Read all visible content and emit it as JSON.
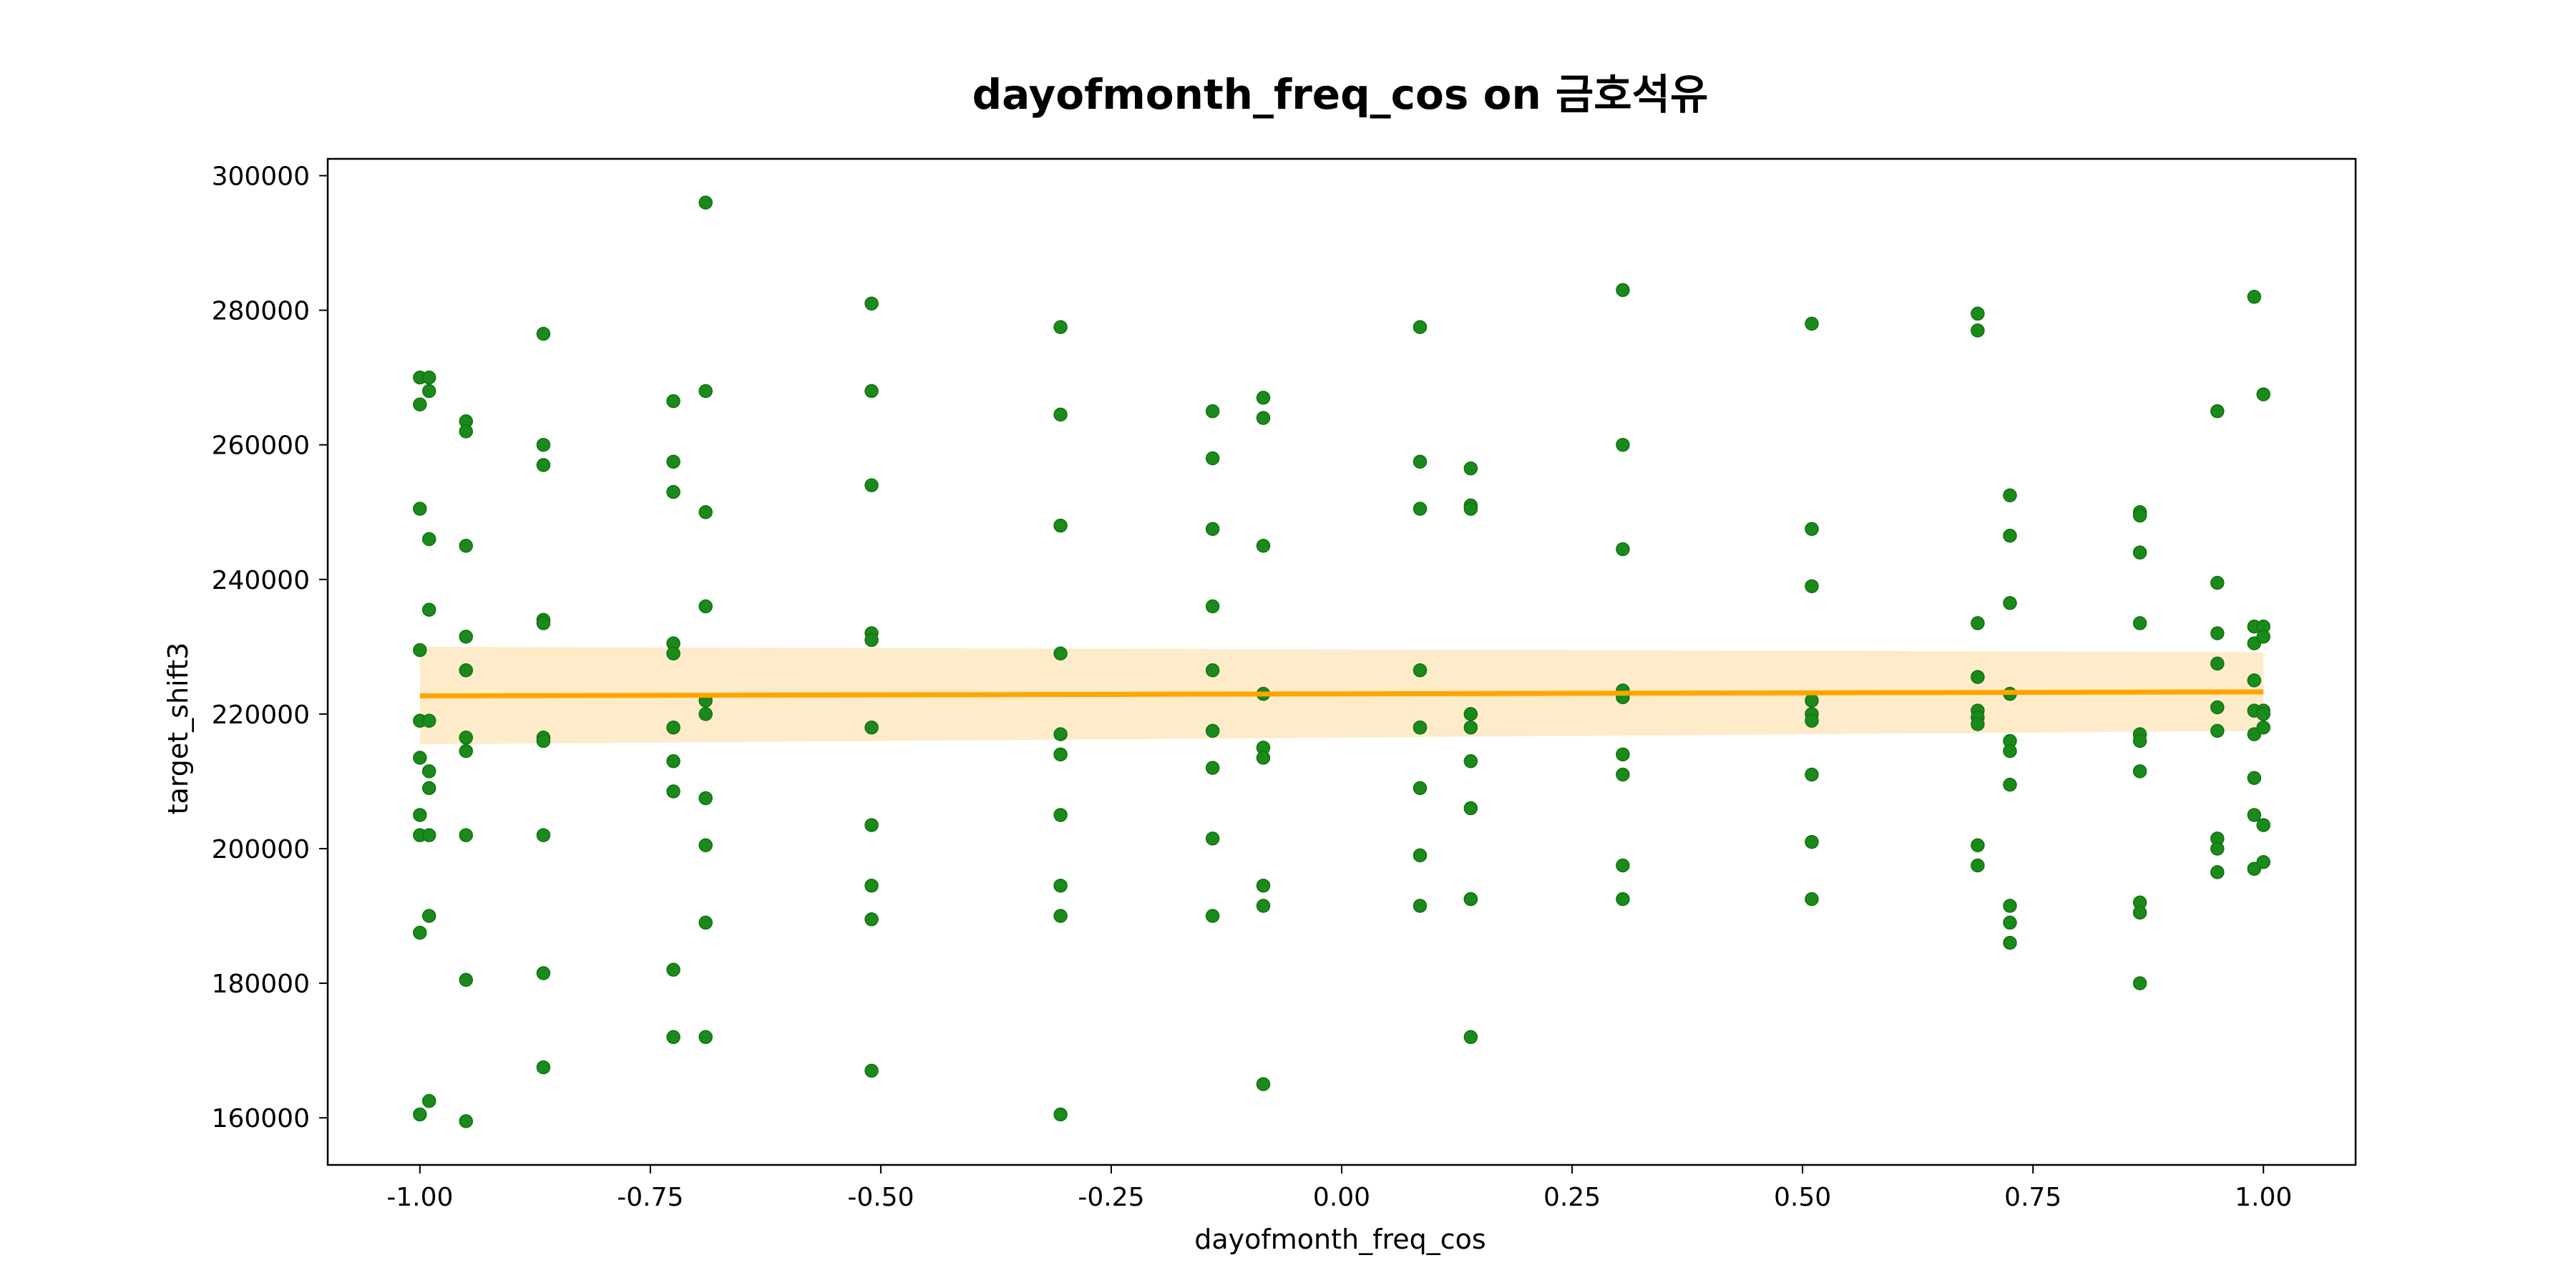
{
  "chart_data": {
    "type": "scatter",
    "title": "dayofmonth_freq_cos on 금호석유",
    "xlabel": "dayofmonth_freq_cos",
    "ylabel": "target_shift3",
    "xlim": [
      -1.1,
      1.1
    ],
    "ylim": [
      153000,
      302500
    ],
    "xticks": [
      -1.0,
      -0.75,
      -0.5,
      -0.25,
      0.0,
      0.25,
      0.5,
      0.75,
      1.0
    ],
    "xtick_labels": [
      "-1.00",
      "-0.75",
      "-0.50",
      "-0.25",
      "0.00",
      "0.25",
      "0.50",
      "0.75",
      "1.00"
    ],
    "yticks": [
      160000,
      180000,
      200000,
      220000,
      240000,
      260000,
      280000,
      300000
    ],
    "ytick_labels": [
      "160000",
      "180000",
      "200000",
      "220000",
      "240000",
      "260000",
      "280000",
      "300000"
    ],
    "grid": false,
    "colors": {
      "points": "#1a8a1a",
      "points_edge": "#117311",
      "regression_line": "#ffa500",
      "confidence_band": "#fde7c0"
    },
    "points": [
      [
        -1.0,
        270000
      ],
      [
        -0.99,
        270000
      ],
      [
        -0.99,
        268000
      ],
      [
        -1.0,
        266000
      ],
      [
        -1.0,
        250500
      ],
      [
        -0.99,
        246000
      ],
      [
        -0.99,
        235500
      ],
      [
        -1.0,
        229500
      ],
      [
        -1.0,
        219000
      ],
      [
        -0.99,
        219000
      ],
      [
        -1.0,
        213500
      ],
      [
        -0.99,
        211500
      ],
      [
        -0.99,
        209000
      ],
      [
        -1.0,
        205000
      ],
      [
        -1.0,
        202000
      ],
      [
        -0.99,
        202000
      ],
      [
        -0.99,
        190000
      ],
      [
        -1.0,
        187500
      ],
      [
        -0.99,
        162500
      ],
      [
        -1.0,
        160500
      ],
      [
        -0.95,
        263500
      ],
      [
        -0.95,
        262000
      ],
      [
        -0.95,
        245000
      ],
      [
        -0.95,
        231500
      ],
      [
        -0.95,
        226500
      ],
      [
        -0.95,
        216500
      ],
      [
        -0.95,
        214500
      ],
      [
        -0.95,
        202000
      ],
      [
        -0.95,
        180500
      ],
      [
        -0.95,
        159500
      ],
      [
        -0.866,
        276500
      ],
      [
        -0.866,
        260000
      ],
      [
        -0.866,
        257000
      ],
      [
        -0.866,
        234000
      ],
      [
        -0.866,
        233500
      ],
      [
        -0.866,
        216500
      ],
      [
        -0.866,
        216000
      ],
      [
        -0.866,
        202000
      ],
      [
        -0.866,
        181500
      ],
      [
        -0.866,
        167500
      ],
      [
        -0.725,
        266500
      ],
      [
        -0.725,
        257500
      ],
      [
        -0.725,
        253000
      ],
      [
        -0.725,
        230500
      ],
      [
        -0.725,
        229000
      ],
      [
        -0.725,
        218000
      ],
      [
        -0.725,
        213000
      ],
      [
        -0.725,
        208500
      ],
      [
        -0.725,
        182000
      ],
      [
        -0.725,
        172000
      ],
      [
        -0.69,
        296000
      ],
      [
        -0.69,
        268000
      ],
      [
        -0.69,
        250000
      ],
      [
        -0.69,
        236000
      ],
      [
        -0.69,
        222000
      ],
      [
        -0.69,
        220000
      ],
      [
        -0.69,
        207500
      ],
      [
        -0.69,
        200500
      ],
      [
        -0.69,
        189000
      ],
      [
        -0.69,
        172000
      ],
      [
        -0.51,
        281000
      ],
      [
        -0.51,
        268000
      ],
      [
        -0.51,
        254000
      ],
      [
        -0.51,
        232000
      ],
      [
        -0.51,
        231000
      ],
      [
        -0.51,
        218000
      ],
      [
        -0.51,
        203500
      ],
      [
        -0.51,
        194500
      ],
      [
        -0.51,
        189500
      ],
      [
        -0.51,
        167000
      ],
      [
        -0.305,
        277500
      ],
      [
        -0.305,
        264500
      ],
      [
        -0.305,
        248000
      ],
      [
        -0.305,
        229000
      ],
      [
        -0.305,
        217000
      ],
      [
        -0.305,
        214000
      ],
      [
        -0.305,
        205000
      ],
      [
        -0.305,
        194500
      ],
      [
        -0.305,
        190000
      ],
      [
        -0.305,
        160500
      ],
      [
        -0.14,
        265000
      ],
      [
        -0.14,
        258000
      ],
      [
        -0.14,
        247500
      ],
      [
        -0.14,
        236000
      ],
      [
        -0.14,
        226500
      ],
      [
        -0.14,
        217500
      ],
      [
        -0.14,
        212000
      ],
      [
        -0.14,
        201500
      ],
      [
        -0.14,
        190000
      ],
      [
        -0.085,
        267000
      ],
      [
        -0.085,
        264000
      ],
      [
        -0.085,
        245000
      ],
      [
        -0.085,
        223000
      ],
      [
        -0.085,
        215000
      ],
      [
        -0.085,
        213500
      ],
      [
        -0.085,
        194500
      ],
      [
        -0.085,
        191500
      ],
      [
        -0.085,
        165000
      ],
      [
        0.085,
        277500
      ],
      [
        0.085,
        257500
      ],
      [
        0.085,
        250500
      ],
      [
        0.085,
        226500
      ],
      [
        0.085,
        218000
      ],
      [
        0.085,
        218000
      ],
      [
        0.085,
        209000
      ],
      [
        0.085,
        199000
      ],
      [
        0.085,
        191500
      ],
      [
        0.14,
        256500
      ],
      [
        0.14,
        251000
      ],
      [
        0.14,
        250500
      ],
      [
        0.14,
        220000
      ],
      [
        0.14,
        218000
      ],
      [
        0.14,
        213000
      ],
      [
        0.14,
        206000
      ],
      [
        0.14,
        192500
      ],
      [
        0.14,
        192500
      ],
      [
        0.14,
        172000
      ],
      [
        0.305,
        283000
      ],
      [
        0.305,
        260000
      ],
      [
        0.305,
        244500
      ],
      [
        0.305,
        223500
      ],
      [
        0.305,
        222500
      ],
      [
        0.305,
        214000
      ],
      [
        0.305,
        211000
      ],
      [
        0.305,
        197500
      ],
      [
        0.305,
        192500
      ],
      [
        0.51,
        278000
      ],
      [
        0.51,
        247500
      ],
      [
        0.51,
        239000
      ],
      [
        0.51,
        222000
      ],
      [
        0.51,
        220000
      ],
      [
        0.51,
        219000
      ],
      [
        0.51,
        211000
      ],
      [
        0.51,
        201000
      ],
      [
        0.51,
        192500
      ],
      [
        0.69,
        279500
      ],
      [
        0.69,
        277000
      ],
      [
        0.69,
        233500
      ],
      [
        0.69,
        225500
      ],
      [
        0.69,
        220500
      ],
      [
        0.69,
        219500
      ],
      [
        0.69,
        218500
      ],
      [
        0.69,
        200500
      ],
      [
        0.69,
        197500
      ],
      [
        0.725,
        252500
      ],
      [
        0.725,
        246500
      ],
      [
        0.725,
        236500
      ],
      [
        0.725,
        223000
      ],
      [
        0.725,
        216000
      ],
      [
        0.725,
        214500
      ],
      [
        0.725,
        209500
      ],
      [
        0.725,
        191500
      ],
      [
        0.725,
        189000
      ],
      [
        0.725,
        186000
      ],
      [
        0.866,
        250000
      ],
      [
        0.866,
        249500
      ],
      [
        0.866,
        244000
      ],
      [
        0.866,
        233500
      ],
      [
        0.866,
        217000
      ],
      [
        0.866,
        216000
      ],
      [
        0.866,
        211500
      ],
      [
        0.866,
        192000
      ],
      [
        0.866,
        190500
      ],
      [
        0.866,
        180000
      ],
      [
        0.95,
        265000
      ],
      [
        0.95,
        239500
      ],
      [
        0.95,
        232000
      ],
      [
        0.95,
        227500
      ],
      [
        0.95,
        221000
      ],
      [
        0.95,
        217500
      ],
      [
        0.95,
        201500
      ],
      [
        0.95,
        200000
      ],
      [
        0.95,
        196500
      ],
      [
        0.99,
        282000
      ],
      [
        0.99,
        233000
      ],
      [
        0.99,
        230500
      ],
      [
        0.99,
        225000
      ],
      [
        0.99,
        220500
      ],
      [
        0.99,
        217000
      ],
      [
        0.99,
        210500
      ],
      [
        0.99,
        205000
      ],
      [
        0.99,
        197000
      ],
      [
        1.0,
        267500
      ],
      [
        1.0,
        233000
      ],
      [
        1.0,
        231500
      ],
      [
        1.0,
        220500
      ],
      [
        1.0,
        220000
      ],
      [
        1.0,
        218000
      ],
      [
        1.0,
        203500
      ],
      [
        1.0,
        198000
      ]
    ],
    "regression": {
      "x": [
        -1.0,
        1.0
      ],
      "y": [
        222700,
        223300
      ],
      "ci_lower": [
        215500,
        217500
      ],
      "ci_upper": [
        230000,
        229200
      ]
    }
  }
}
